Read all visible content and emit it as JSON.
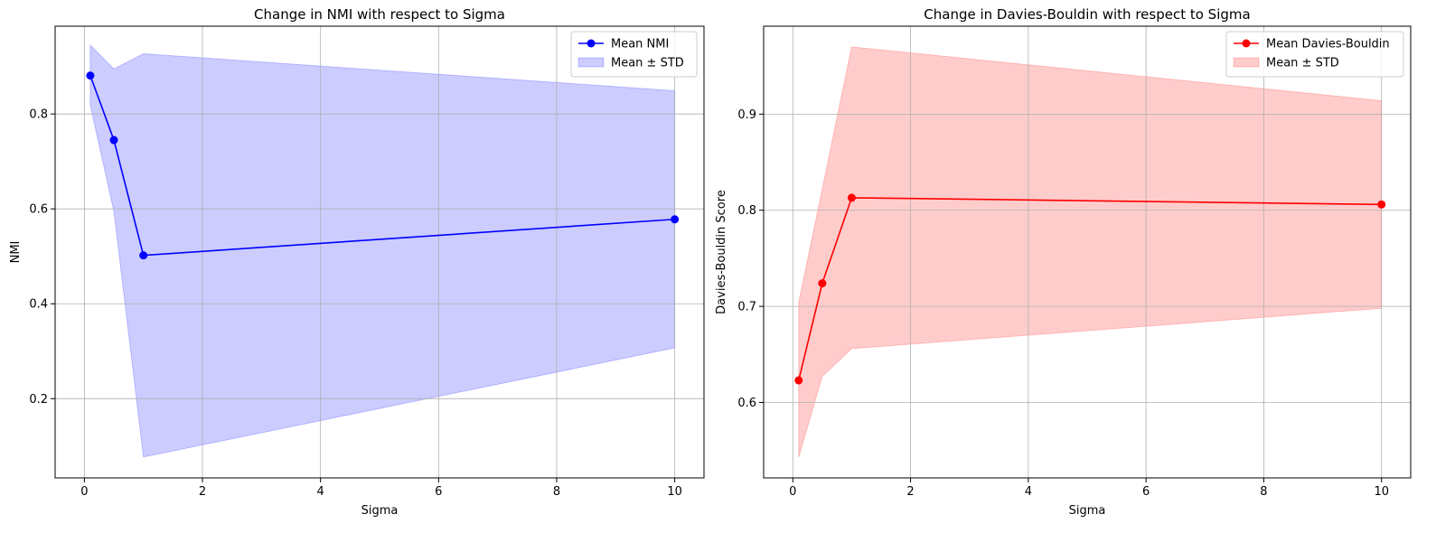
{
  "chart_data": [
    {
      "type": "line",
      "title": "Change in NMI with respect to Sigma",
      "xlabel": "Sigma",
      "ylabel": "NMI",
      "xlim": [
        -0.4955,
        10.4955
      ],
      "ylim": [
        0.033,
        0.985
      ],
      "xticks": [
        0,
        2,
        4,
        6,
        8,
        10
      ],
      "xtick_labels": [
        "0",
        "2",
        "4",
        "6",
        "8",
        "10"
      ],
      "yticks": [
        0.2,
        0.4,
        0.6,
        0.8
      ],
      "ytick_labels": [
        "0.2",
        "0.4",
        "0.6",
        "0.8"
      ],
      "grid": true,
      "legend_position": "top-right",
      "x": [
        0.1,
        0.5,
        1,
        10
      ],
      "series": [
        {
          "name": "Mean NMI",
          "kind": "line-marker",
          "color": "#0000ff",
          "values": [
            0.881,
            0.745,
            0.502,
            0.578
          ]
        }
      ],
      "band": {
        "name": "Mean ± STD",
        "color": "#0000ff",
        "lower": [
          0.818,
          0.595,
          0.077,
          0.307
        ],
        "upper": [
          0.945,
          0.895,
          0.927,
          0.849
        ]
      }
    },
    {
      "type": "line",
      "title": "Change in Davies-Bouldin with respect to Sigma",
      "xlabel": "Sigma",
      "ylabel": "Davies-Bouldin Score",
      "xlim": [
        -0.4955,
        10.4955
      ],
      "ylim": [
        0.5215,
        0.9915
      ],
      "xticks": [
        0,
        2,
        4,
        6,
        8,
        10
      ],
      "xtick_labels": [
        "0",
        "2",
        "4",
        "6",
        "8",
        "10"
      ],
      "yticks": [
        0.6,
        0.7,
        0.8,
        0.9
      ],
      "ytick_labels": [
        "0.6",
        "0.7",
        "0.8",
        "0.9"
      ],
      "grid": true,
      "legend_position": "top-right",
      "x": [
        0.1,
        0.5,
        1,
        10
      ],
      "series": [
        {
          "name": "Mean Davies-Bouldin",
          "kind": "line-marker",
          "color": "#ff0000",
          "values": [
            0.623,
            0.724,
            0.813,
            0.806
          ]
        }
      ],
      "band": {
        "name": "Mean ± STD",
        "color": "#ff0000",
        "lower": [
          0.543,
          0.627,
          0.656,
          0.698
        ],
        "upper": [
          0.704,
          0.822,
          0.97,
          0.914
        ]
      }
    }
  ]
}
